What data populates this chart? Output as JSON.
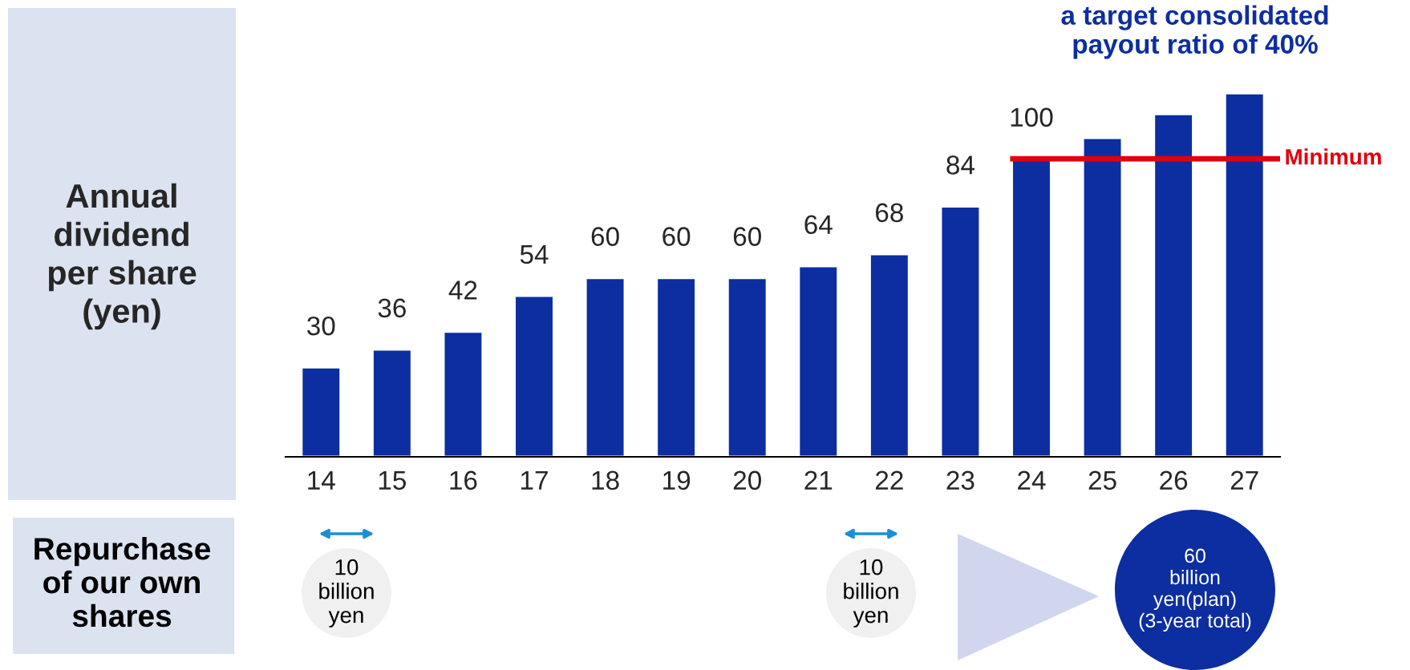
{
  "chart_data": {
    "type": "bar",
    "ylabel": "Annual\ndividend\nper share\n(yen)",
    "categories": [
      "14",
      "15",
      "16",
      "17",
      "18",
      "19",
      "20",
      "21",
      "22",
      "23",
      "24",
      "25",
      "26",
      "27"
    ],
    "values": [
      30,
      36,
      42,
      54,
      60,
      60,
      60,
      64,
      68,
      84,
      100,
      107,
      115,
      122
    ],
    "value_labels": [
      "30",
      "36",
      "42",
      "54",
      "60",
      "60",
      "60",
      "64",
      "68",
      "84",
      "100",
      null,
      null,
      null
    ],
    "color": "#0d2ea0",
    "ref_lines": [
      {
        "axis": "y",
        "value": 100,
        "label": "Minimum",
        "color": "#e0000f"
      }
    ],
    "annotations": [
      "a target consolidated\npayout ratio of 40%",
      "Repurchase\nof our own\nshares",
      "10\nbillion\nyen",
      "10\nbillion\nyen",
      "60\nbillion\nyen(plan)\n(3-year total)"
    ],
    "grid": false,
    "legend": false
  }
}
